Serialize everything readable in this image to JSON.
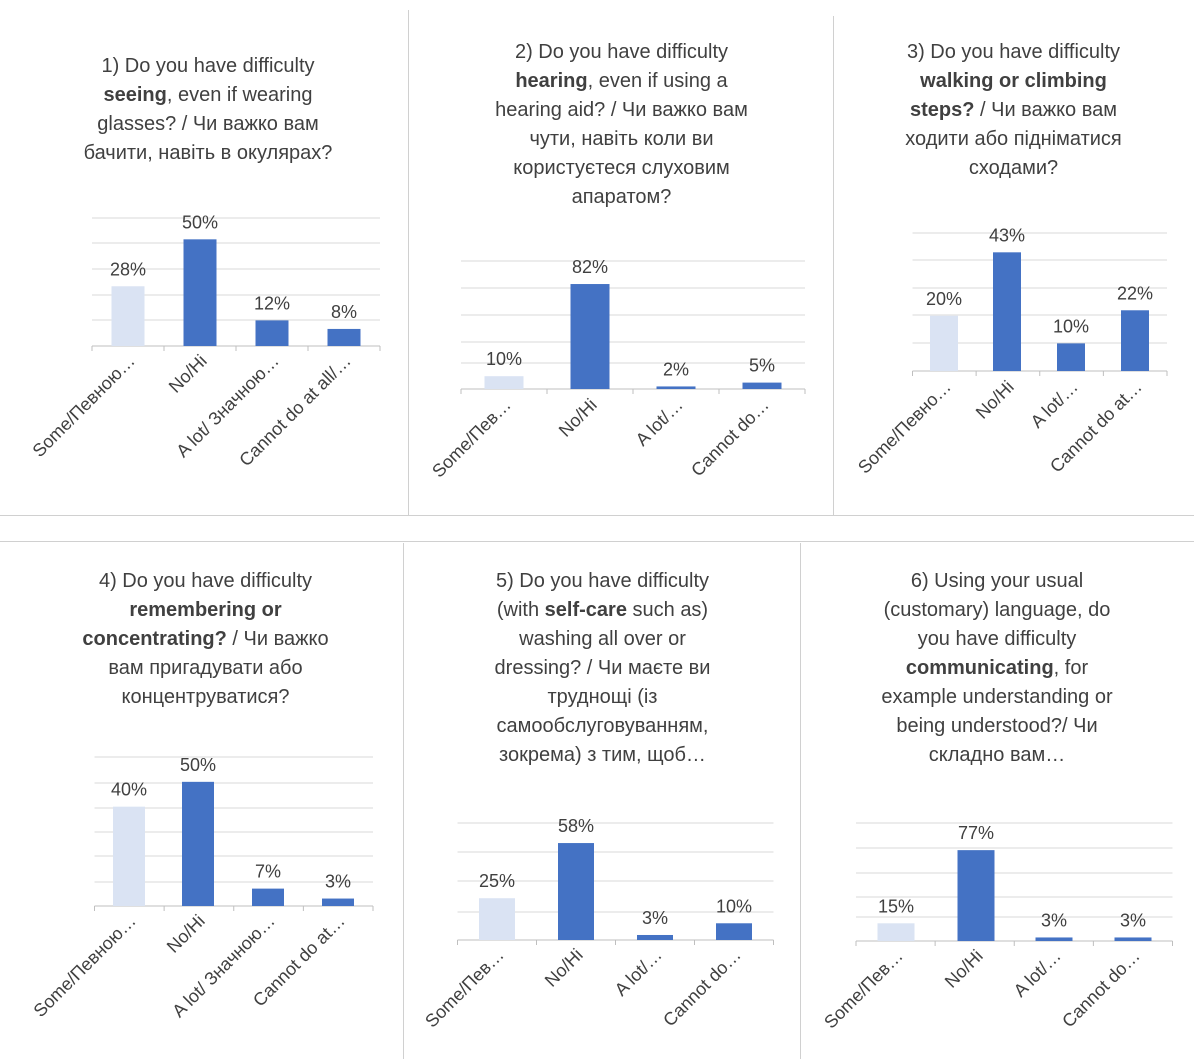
{
  "colors": {
    "light": "#dae3f3",
    "dark": "#4472c4",
    "grid": "#d9d9d9",
    "axis": "#bfbfbf",
    "text": "#404040"
  },
  "charts": [
    {
      "title_lines": [
        [
          {
            "t": "1) Do you have difficulty",
            "b": false
          }
        ],
        [
          {
            "t": "seeing",
            "b": true
          },
          {
            "t": ", even if wearing",
            "b": false
          }
        ],
        [
          {
            "t": "glasses? / Чи важко вам",
            "b": false
          }
        ],
        [
          {
            "t": "бачити, навіть в окулярах?",
            "b": false
          }
        ]
      ]
    },
    {
      "title_lines": [
        [
          {
            "t": "2) Do you have difficulty",
            "b": false
          }
        ],
        [
          {
            "t": "hearing",
            "b": true
          },
          {
            "t": ", even if using a",
            "b": false
          }
        ],
        [
          {
            "t": "hearing aid? / Чи важко вам",
            "b": false
          }
        ],
        [
          {
            "t": "чути, навіть коли ви",
            "b": false
          }
        ],
        [
          {
            "t": "користуєтеся слуховим",
            "b": false
          }
        ],
        [
          {
            "t": "апаратом?",
            "b": false
          }
        ]
      ]
    },
    {
      "title_lines": [
        [
          {
            "t": "3) Do you have difficulty",
            "b": false
          }
        ],
        [
          {
            "t": "walking or climbing",
            "b": true
          }
        ],
        [
          {
            "t": "steps?",
            "b": true
          },
          {
            "t": " / Чи важко вам",
            "b": false
          }
        ],
        [
          {
            "t": "ходити або підніматися",
            "b": false
          }
        ],
        [
          {
            "t": "сходами?",
            "b": false
          }
        ]
      ]
    },
    {
      "title_lines": [
        [
          {
            "t": "4) Do you have difficulty",
            "b": false
          }
        ],
        [
          {
            "t": "remembering or",
            "b": true
          }
        ],
        [
          {
            "t": "concentrating?",
            "b": true
          },
          {
            "t": " / Чи важко",
            "b": false
          }
        ],
        [
          {
            "t": "вам пригадувати або",
            "b": false
          }
        ],
        [
          {
            "t": "концентруватися?",
            "b": false
          }
        ]
      ]
    },
    {
      "title_lines": [
        [
          {
            "t": "5) Do you have difficulty",
            "b": false
          }
        ],
        [
          {
            "t": "(with ",
            "b": false
          },
          {
            "t": "self-care",
            "b": true
          },
          {
            "t": " such as)",
            "b": false
          }
        ],
        [
          {
            "t": "washing all over or",
            "b": false
          }
        ],
        [
          {
            "t": "dressing? / Чи маєте ви",
            "b": false
          }
        ],
        [
          {
            "t": "труднощі (із",
            "b": false
          }
        ],
        [
          {
            "t": "самообслуговуванням,",
            "b": false
          }
        ],
        [
          {
            "t": "зокрема) з тим, щоб…",
            "b": false
          }
        ]
      ]
    },
    {
      "title_lines": [
        [
          {
            "t": "6) Using your usual",
            "b": false
          }
        ],
        [
          {
            "t": "(customary) language, do",
            "b": false
          }
        ],
        [
          {
            "t": "you have difficulty",
            "b": false
          }
        ],
        [
          {
            "t": "communicating",
            "b": true
          },
          {
            "t": ", for",
            "b": false
          }
        ],
        [
          {
            "t": "example understanding or",
            "b": false
          }
        ],
        [
          {
            "t": "being understood?/ Чи",
            "b": false
          }
        ],
        [
          {
            "t": "складно вам…",
            "b": false
          }
        ]
      ]
    }
  ],
  "chart_data": [
    {
      "type": "bar",
      "categories": [
        "Some/Певною…",
        "No/Ні",
        "A lot/ Значною…",
        "Cannot do at all/…"
      ],
      "values": [
        28,
        50,
        12,
        8
      ],
      "data_labels": [
        "28%",
        "50%",
        "12%",
        "8%"
      ],
      "ylim": [
        0,
        60
      ],
      "grid": true,
      "bar_colors": [
        "light",
        "dark",
        "dark",
        "dark"
      ]
    },
    {
      "type": "bar",
      "categories": [
        "Some/Пев…",
        "No/Ні",
        "A lot/…",
        "Cannot do…"
      ],
      "values": [
        10,
        82,
        2,
        5
      ],
      "data_labels": [
        "10%",
        "82%",
        "2%",
        "5%"
      ],
      "ylim": [
        0,
        100
      ],
      "grid": true,
      "bar_colors": [
        "light",
        "dark",
        "dark",
        "dark"
      ]
    },
    {
      "type": "bar",
      "categories": [
        "Some/Певно…",
        "No/Ні",
        "A lot/…",
        "Cannot do at…"
      ],
      "values": [
        20,
        43,
        10,
        22
      ],
      "data_labels": [
        "20%",
        "43%",
        "10%",
        "22%"
      ],
      "ylim": [
        0,
        50
      ],
      "grid": true,
      "bar_colors": [
        "light",
        "dark",
        "dark",
        "dark"
      ]
    },
    {
      "type": "bar",
      "categories": [
        "Some/Певною…",
        "No/Ні",
        "A lot/ Значною…",
        "Cannot do at…"
      ],
      "values": [
        40,
        50,
        7,
        3
      ],
      "data_labels": [
        "40%",
        "50%",
        "7%",
        "3%"
      ],
      "ylim": [
        0,
        60
      ],
      "grid": true,
      "bar_colors": [
        "light",
        "dark",
        "dark",
        "dark"
      ]
    },
    {
      "type": "bar",
      "categories": [
        "Some/Пев…",
        "No/Ні",
        "A lot/…",
        "Cannot do…"
      ],
      "values": [
        25,
        58,
        3,
        10
      ],
      "data_labels": [
        "25%",
        "58%",
        "3%",
        "10%"
      ],
      "ylim": [
        0,
        70
      ],
      "grid": true,
      "bar_colors": [
        "light",
        "dark",
        "dark",
        "dark"
      ]
    },
    {
      "type": "bar",
      "categories": [
        "Some/Пев…",
        "No/Ні",
        "A lot/…",
        "Cannot do…"
      ],
      "values": [
        15,
        77,
        3,
        3
      ],
      "data_labels": [
        "15%",
        "77%",
        "3%",
        "3%"
      ],
      "ylim": [
        0,
        100
      ],
      "grid": true,
      "bar_colors": [
        "light",
        "dark",
        "dark",
        "dark"
      ]
    }
  ]
}
